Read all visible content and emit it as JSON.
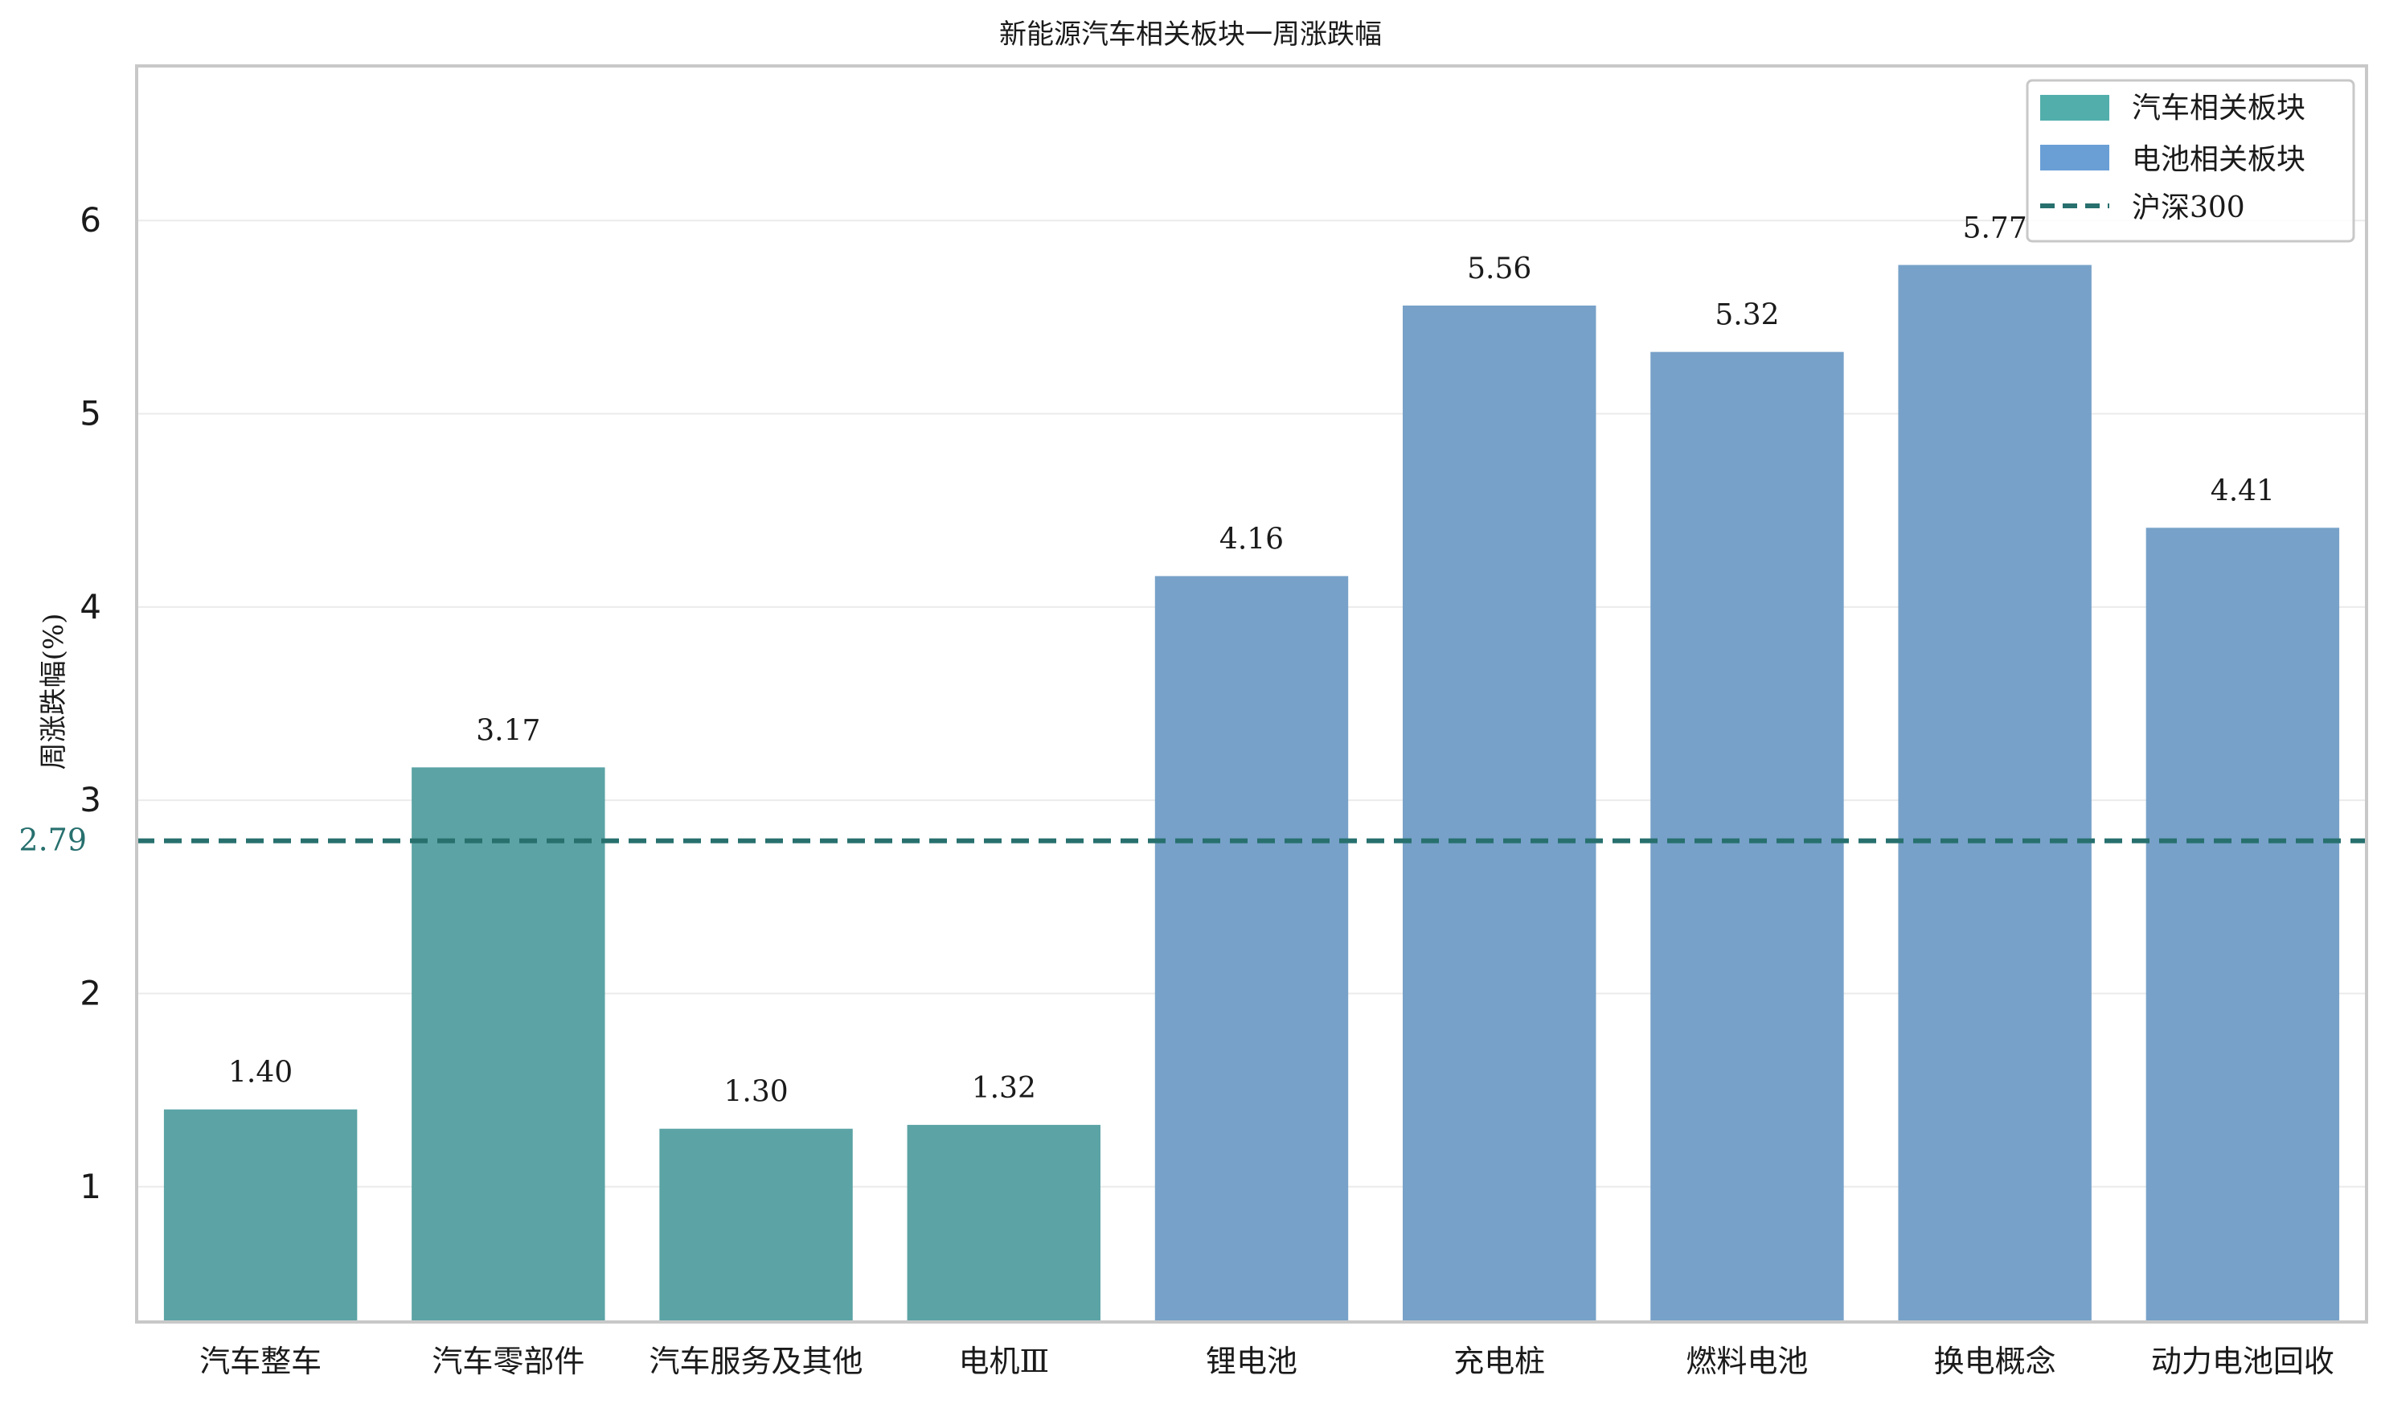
{
  "chart_data": {
    "type": "bar",
    "title": "新能源汽车相关板块一周涨跌幅",
    "xlabel": "",
    "ylabel": "周涨跌幅(%)",
    "categories": [
      "汽车整车",
      "汽车零部件",
      "汽车服务及其他",
      "电机Ⅲ",
      "锂电池",
      "充电桩",
      "燃料电池",
      "换电概念",
      "动力电池回收"
    ],
    "values": [
      1.4,
      3.17,
      1.3,
      1.32,
      4.16,
      5.56,
      5.32,
      5.77,
      4.41
    ],
    "value_labels": [
      "1.40",
      "3.17",
      "1.30",
      "1.32",
      "4.16",
      "5.56",
      "5.32",
      "5.77",
      "4.41"
    ],
    "groups": [
      "auto",
      "auto",
      "auto",
      "auto",
      "battery",
      "battery",
      "battery",
      "battery",
      "battery"
    ],
    "series": [
      {
        "key": "auto",
        "name": "汽车相关板块",
        "color": "#5ba3a5",
        "legend_color": "#52aeab"
      },
      {
        "key": "battery",
        "name": "电池相关板块",
        "color": "#77a1c8",
        "legend_color": "#6a9fd6"
      }
    ],
    "reference_line": {
      "name": "沪深300",
      "value": 2.79,
      "label": "2.79",
      "color": "#27706e",
      "style": "dashed"
    },
    "yticks": [
      1,
      2,
      3,
      4,
      5,
      6
    ],
    "ytick_labels": [
      "1",
      "2",
      "3",
      "4",
      "5",
      "6"
    ],
    "ylim": [
      0.3,
      6.8
    ],
    "grid": "horizontal",
    "legend_position": "top-right"
  }
}
